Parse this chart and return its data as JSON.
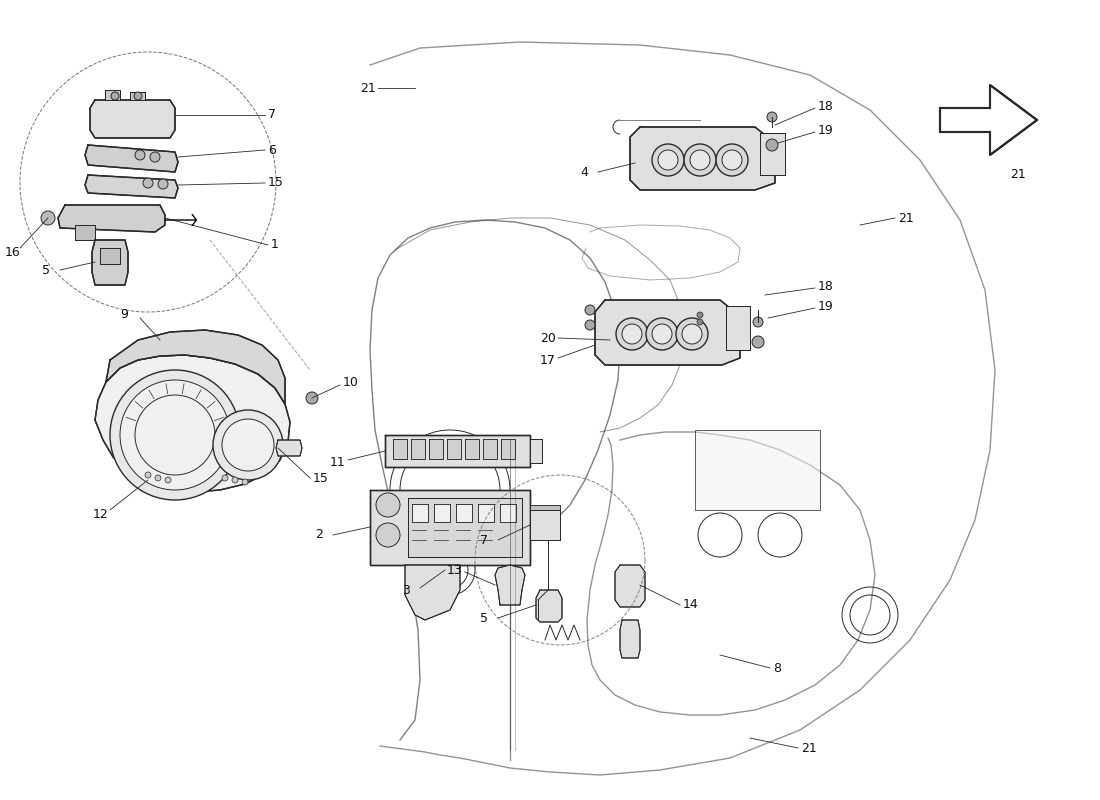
{
  "background_color": "#ffffff",
  "line_color": "#2a2a2a",
  "label_color": "#111111",
  "dashed_color": "#666666",
  "figsize": [
    11.0,
    8.0
  ],
  "dpi": 100,
  "lw_thin": 0.7,
  "lw_med": 1.0,
  "lw_thick": 1.5,
  "lw_leader": 0.6,
  "fs_label": 9
}
